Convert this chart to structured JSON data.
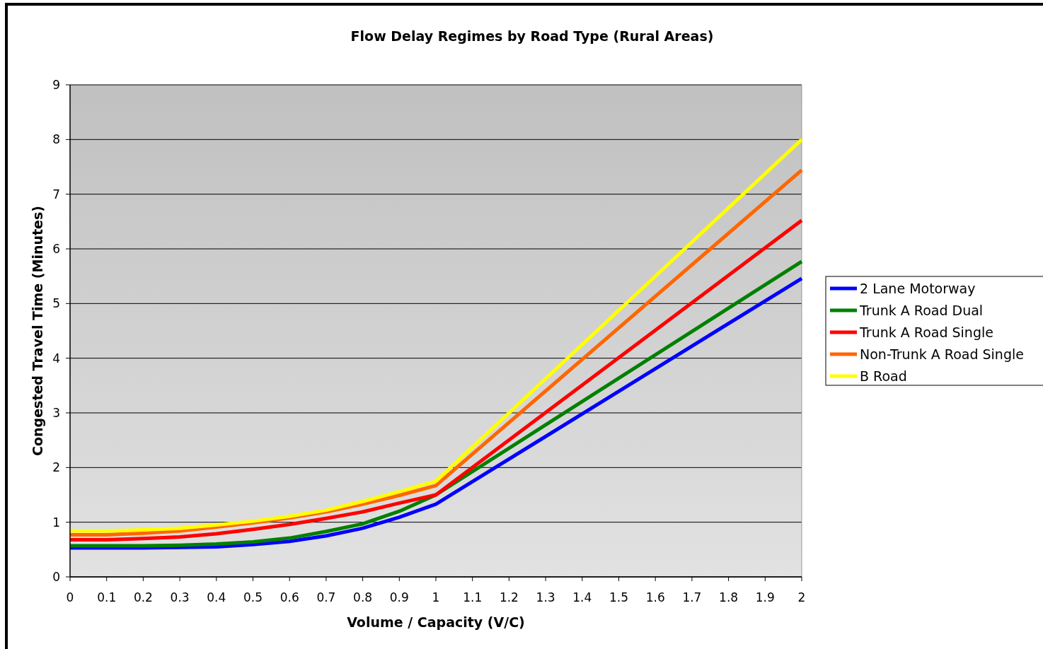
{
  "chart_data": {
    "type": "line",
    "title": "Flow Delay Regimes by Road Type (Rural Areas)",
    "xlabel": "Volume / Capacity (V/C)",
    "ylabel": "Congested Travel Time (Minutes)",
    "x": [
      0,
      0.1,
      0.2,
      0.3,
      0.4,
      0.5,
      0.6,
      0.7,
      0.8,
      0.9,
      1,
      2
    ],
    "series": [
      {
        "name": "2 Lane Motorway",
        "color": "#0000ff",
        "values": [
          0.53,
          0.53,
          0.53,
          0.54,
          0.55,
          0.59,
          0.65,
          0.75,
          0.89,
          1.09,
          1.33,
          5.46
        ]
      },
      {
        "name": "Trunk A Road Dual",
        "color": "#008000",
        "values": [
          0.57,
          0.57,
          0.57,
          0.58,
          0.6,
          0.64,
          0.71,
          0.83,
          0.97,
          1.2,
          1.5,
          5.77
        ]
      },
      {
        "name": "Trunk A Road Single",
        "color": "#ff0000",
        "values": [
          0.68,
          0.68,
          0.7,
          0.73,
          0.79,
          0.87,
          0.96,
          1.07,
          1.19,
          1.35,
          1.5,
          6.52
        ]
      },
      {
        "name": "Non-Trunk A Road Single",
        "color": "#ff6600",
        "values": [
          0.77,
          0.77,
          0.8,
          0.84,
          0.91,
          0.99,
          1.08,
          1.19,
          1.33,
          1.49,
          1.67,
          7.44
        ]
      },
      {
        "name": "B Road",
        "color": "#ffff00",
        "values": [
          0.84,
          0.84,
          0.86,
          0.89,
          0.95,
          1.02,
          1.11,
          1.22,
          1.38,
          1.56,
          1.75,
          8.0
        ]
      }
    ],
    "xlim": [
      0,
      2
    ],
    "xticks": [
      0,
      0.1,
      0.2,
      0.3,
      0.4,
      0.5,
      0.6,
      0.7,
      0.8,
      0.9,
      1,
      1.1,
      1.2,
      1.3,
      1.4,
      1.5,
      1.6,
      1.7,
      1.8,
      1.9,
      2
    ],
    "ylim": [
      0,
      9
    ],
    "yticks": [
      0,
      1,
      2,
      3,
      4,
      5,
      6,
      7,
      8,
      9
    ],
    "grid": "y",
    "legend": "right",
    "marker": "none",
    "line_style": "solid"
  }
}
